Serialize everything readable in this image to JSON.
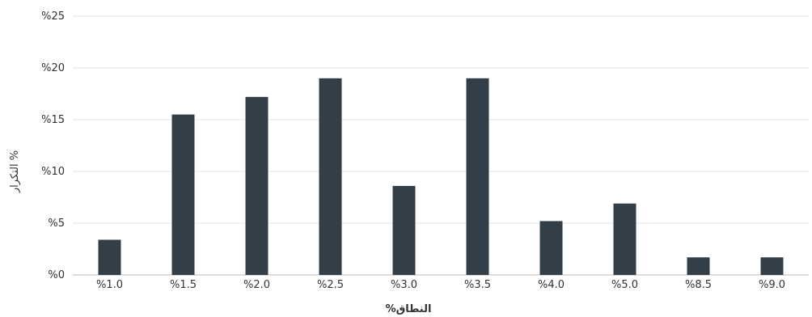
{
  "chart_data": {
    "type": "bar",
    "title": "",
    "xlabel": "%النطاق",
    "ylabel": "التكرار %",
    "categories": [
      "%1.0",
      "%1.5",
      "%2.0",
      "%2.5",
      "%3.0",
      "%3.5",
      "%4.0",
      "%5.0",
      "%8.5",
      "%9.0"
    ],
    "values": [
      3.4,
      15.5,
      17.2,
      19.0,
      8.6,
      19.0,
      5.2,
      6.9,
      1.7,
      1.7
    ],
    "ylim": [
      0,
      25
    ],
    "yticks": [
      0,
      5,
      10,
      15,
      20,
      25
    ],
    "ytick_labels": [
      "%0",
      "%5",
      "%10",
      "%15",
      "%20",
      "%25"
    ],
    "grid": true,
    "legend": "none",
    "bar_color": "#333f48"
  }
}
